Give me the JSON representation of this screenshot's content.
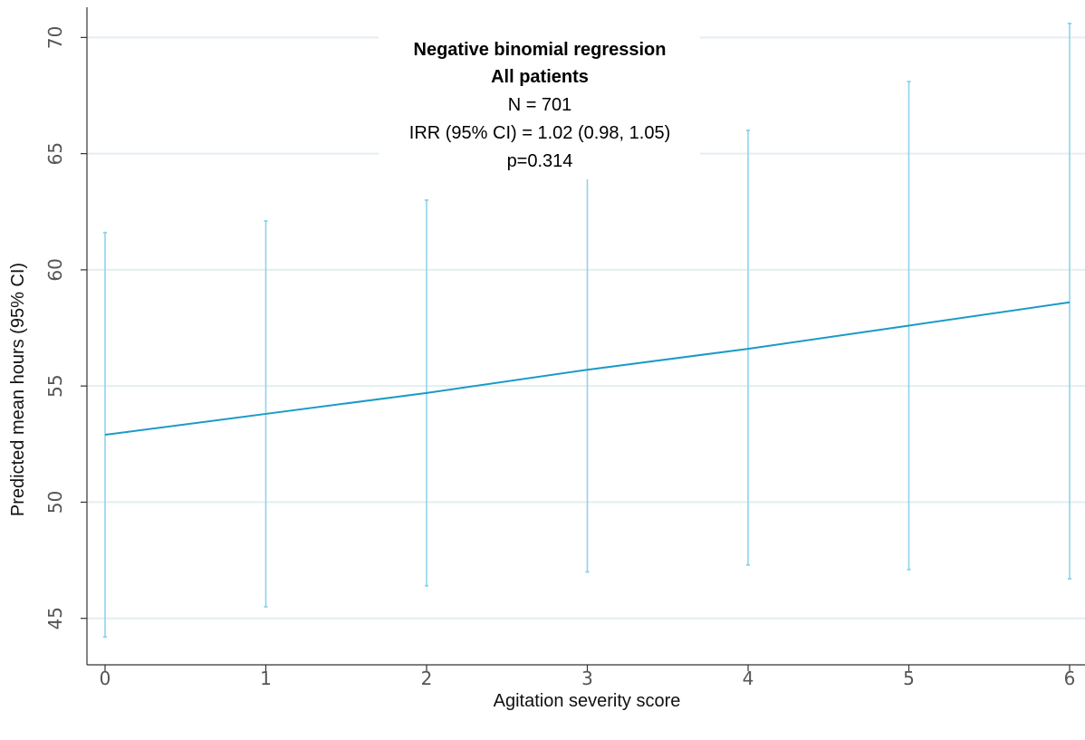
{
  "chart_data": {
    "type": "line",
    "title": "",
    "xlabel": "Agitation severity score",
    "ylabel": "Predicted mean hours (95% CI)",
    "x": [
      0,
      1,
      2,
      3,
      4,
      5,
      6
    ],
    "x_ticks": [
      "0",
      "1",
      "2",
      "3",
      "4",
      "5",
      "6"
    ],
    "y_ticks": [
      "45",
      "50",
      "55",
      "60",
      "65",
      "70"
    ],
    "xlim": [
      0,
      6
    ],
    "ylim": [
      43,
      71.3
    ],
    "grid": true,
    "series": [
      {
        "y": [
          52.9,
          53.8,
          54.7,
          55.7,
          56.6,
          57.6,
          58.6
        ],
        "ci_lower": [
          44.2,
          45.5,
          46.4,
          47.0,
          47.3,
          47.1,
          46.7
        ],
        "ci_upper": [
          61.6,
          62.1,
          63.0,
          64.0,
          66.0,
          68.1,
          70.6
        ]
      }
    ],
    "annotations": [
      "Negative binomial regression",
      "All patients",
      "N = 701",
      "IRR (95% CI) = 1.02 (0.98, 1.05)",
      "p=0.314"
    ],
    "colors": {
      "line": "#1a9bc6",
      "ci": "#8fd4ec",
      "grid": "#e3eef0",
      "axis": "#333333"
    }
  }
}
